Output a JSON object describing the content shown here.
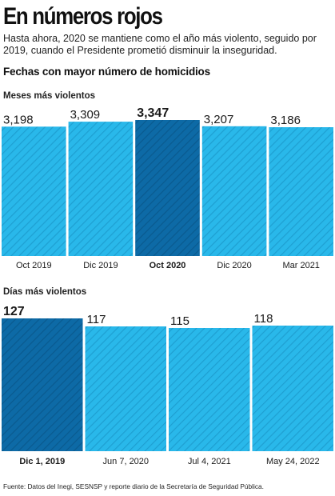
{
  "header": {
    "title": "En números rojos",
    "subtitle": "Hasta ahora, 2020 se mantiene como el año más violento, seguido por 2019, cuando el Presidente prometió disminuir la inseguridad.",
    "section_heading": "Fechas con mayor número de homicidios"
  },
  "colors": {
    "bar": "#29b8ea",
    "bar_stripe": "#1e9fd1",
    "bar_highlight": "#0d6aa6",
    "bar_highlight_stripe": "#0a5a8f",
    "text": "#222222"
  },
  "chart_data": [
    {
      "type": "bar",
      "title": "Meses más violentos",
      "categories": [
        "Oct 2019",
        "Dic 2019",
        "Oct 2020",
        "Dic 2020",
        "Mar 2021"
      ],
      "values": [
        3198,
        3309,
        3347,
        3207,
        3186
      ],
      "value_labels": [
        "3,198",
        "3,309",
        "3,347",
        "3,207",
        "3,186"
      ],
      "highlight_index": 2
    },
    {
      "type": "bar",
      "title": "Días más violentos",
      "categories": [
        "Dic 1, 2019",
        "Jun 7, 2020",
        "Jul 4, 2021",
        "May 24, 2022"
      ],
      "values": [
        127,
        117,
        115,
        118
      ],
      "value_labels": [
        "127",
        "117",
        "115",
        "118"
      ],
      "highlight_index": 0
    }
  ],
  "footer": {
    "source": "Fuente: Datos del Inegi, SESNSP y reporte diario de la Secretaría de Seguridad Pública."
  }
}
